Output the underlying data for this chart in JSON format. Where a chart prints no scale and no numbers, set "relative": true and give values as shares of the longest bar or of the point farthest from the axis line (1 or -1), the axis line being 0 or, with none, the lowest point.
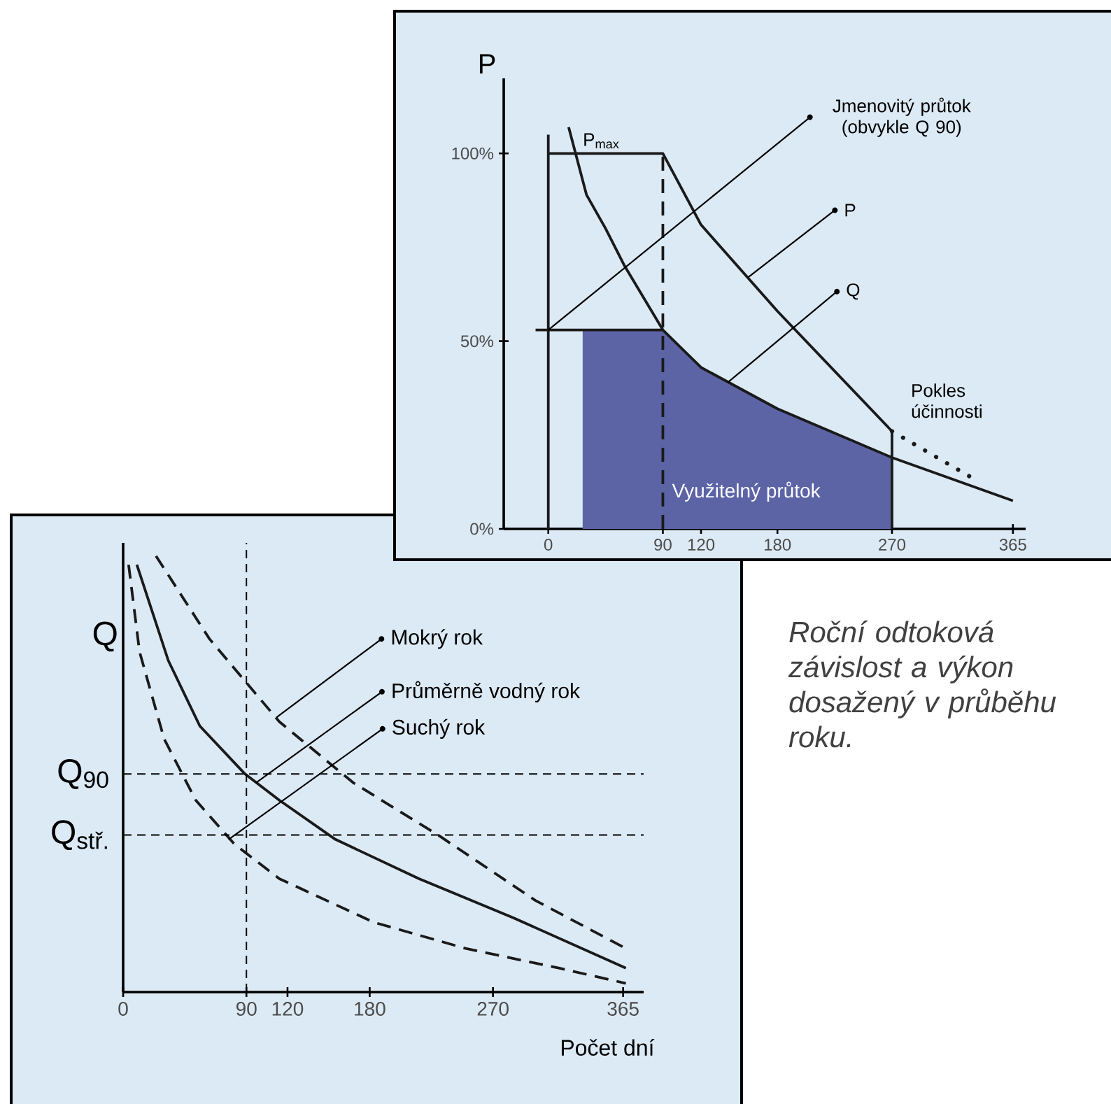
{
  "chart_data": [
    {
      "type": "line",
      "ylabel": "P",
      "xlim": [
        -35,
        375
      ],
      "ylim": [
        0,
        120
      ],
      "xticks": [
        0,
        90,
        120,
        180,
        270,
        365
      ],
      "yticks": [
        {
          "value": 0,
          "label": "0%"
        },
        {
          "value": 50,
          "label": "50%"
        },
        {
          "value": 100,
          "label": "100%"
        }
      ],
      "series": [
        {
          "type": "area",
          "name": "Využitelný průtok",
          "color": "#5c64a6",
          "x": [
            27,
            90,
            120,
            180,
            270
          ],
          "values": [
            53,
            53,
            43,
            32,
            19
          ]
        },
        {
          "color": "#1a1a1a",
          "x": [
            16,
            30,
            45,
            60,
            90,
            120,
            180,
            270,
            365
          ],
          "values": [
            107,
            89,
            80,
            70,
            53,
            43,
            32,
            19,
            7.5
          ]
        },
        {
          "color": "#1a1a1a",
          "x": [
            0,
            90,
            120,
            180,
            270,
            270
          ],
          "values": [
            100,
            100,
            81,
            58,
            26,
            0
          ]
        },
        {
          "color": "#1a1a1a",
          "x": [
            0,
            0
          ],
          "values": [
            0,
            105
          ]
        },
        {
          "color": "#1a1a1a",
          "x": [
            -10,
            90
          ],
          "values": [
            53,
            53
          ]
        },
        {
          "color": "#1a1a1a",
          "line_style": "dashed",
          "x": [
            90,
            90
          ],
          "values": [
            0,
            100
          ]
        },
        {
          "name": "Pokles účinnosti",
          "color": "#1a1a1a",
          "line_style": "dotted",
          "x": [
            270,
            336
          ],
          "values": [
            26,
            13
          ]
        }
      ],
      "annotations": [
        {
          "text": "P$_{max}$",
          "x": 20,
          "y": 100
        },
        {
          "text": "Jmenovitý průtok (obvykle Q 90)",
          "x": 0,
          "y": 53
        },
        {
          "text": "P",
          "x": 157,
          "y": 67
        },
        {
          "text": "Q",
          "x": 141,
          "y": 39
        }
      ]
    },
    {
      "type": "line",
      "relative": true,
      "xlabel": "Počet dní",
      "ylabel": "Q",
      "xlim": [
        0,
        380
      ],
      "xticks": [
        0,
        90,
        120,
        180,
        270,
        365
      ],
      "series": [
        {
          "color": "#1a1a1a",
          "line_style": "dashed",
          "x": [
            24,
            63,
            114,
            168,
            230,
            301,
            367
          ],
          "values": [
            1.0,
            0.81,
            0.62,
            0.48,
            0.36,
            0.21,
            0.1
          ]
        },
        {
          "color": "#1a1a1a",
          "x": [
            10,
            33,
            56,
            89,
            114,
            155,
            216,
            285,
            367
          ],
          "values": [
            0.98,
            0.76,
            0.61,
            0.5,
            0.44,
            0.35,
            0.26,
            0.17,
            0.055
          ]
        },
        {
          "color": "#1a1a1a",
          "line_style": "dashed",
          "x": [
            4,
            12,
            30,
            53,
            81,
            114,
            183,
            250,
            318,
            367
          ],
          "values": [
            0.98,
            0.78,
            0.58,
            0.44,
            0.34,
            0.26,
            0.16,
            0.1,
            0.055,
            0.02
          ]
        }
      ],
      "ref_lines": [
        {
          "axis": "y",
          "value": 0.5,
          "label": "Q$_{90}$",
          "line_style": "dashed"
        },
        {
          "axis": "y",
          "value": 0.36,
          "label": "Q$_{stř.}$",
          "line_style": "dashed"
        },
        {
          "axis": "x",
          "value": 90,
          "line_style": "dashed"
        }
      ],
      "annotations": [
        {
          "text": "Mokrý rok",
          "x": 112,
          "y": 0.63
        },
        {
          "text": "Průměrně vodný rok",
          "x": 97,
          "y": 0.48
        },
        {
          "text": "Suchý rok",
          "x": 77,
          "y": 0.35
        },
        "Roční odtoková závislost a výkon dosažený v průběhu roku."
      ]
    }
  ]
}
